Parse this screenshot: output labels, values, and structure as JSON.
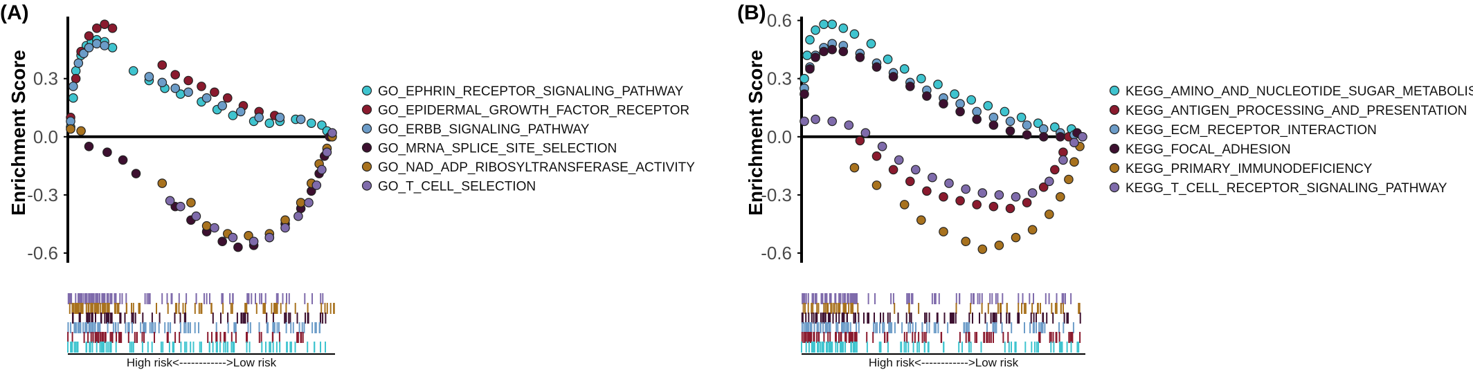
{
  "colors": {
    "cyan": "#3fc4cf",
    "maroon": "#8a1a2e",
    "steel": "#6c9cc8",
    "darkplum": "#3d1030",
    "bronze": "#a8721e",
    "lavender": "#7f6bab"
  },
  "chart_data": [
    {
      "type": "scatter",
      "panel": "(A)",
      "ylabel": "Enrichment Score",
      "ylim": [
        -0.65,
        0.62
      ],
      "xlim": [
        0,
        1
      ],
      "yticks": [
        {
          "value": 0.3,
          "label": "0.3"
        },
        {
          "value": 0.0,
          "label": "0.0"
        },
        {
          "value": -0.3,
          "label": "-0.3"
        },
        {
          "value": -0.6,
          "label": "-0.6"
        }
      ],
      "xcaption": "High risk<------------>Low risk",
      "legend_position": "right",
      "series": [
        {
          "name": "GO_EPHRIN_RECEPTOR_SIGNALING_PATHWAY",
          "color": "#3fc4cf",
          "points": [
            [
              0.0,
              0.05
            ],
            [
              0.01,
              0.2
            ],
            [
              0.02,
              0.34
            ],
            [
              0.04,
              0.42
            ],
            [
              0.06,
              0.47
            ],
            [
              0.08,
              0.49
            ],
            [
              0.1,
              0.5
            ],
            [
              0.13,
              0.49
            ],
            [
              0.16,
              0.46
            ],
            [
              0.24,
              0.34
            ],
            [
              0.3,
              0.29
            ],
            [
              0.36,
              0.25
            ],
            [
              0.42,
              0.22
            ],
            [
              0.5,
              0.18
            ],
            [
              0.56,
              0.14
            ],
            [
              0.62,
              0.11
            ],
            [
              0.7,
              0.08
            ],
            [
              0.76,
              0.07
            ],
            [
              0.8,
              0.08
            ],
            [
              0.86,
              0.09
            ],
            [
              0.92,
              0.07
            ],
            [
              0.96,
              0.06
            ],
            [
              0.98,
              0.03
            ]
          ]
        },
        {
          "name": "GO_EPIDERMAL_GROWTH_FACTOR_RECEPTOR",
          "color": "#8a1a2e",
          "points": [
            [
              0.0,
              0.1
            ],
            [
              0.02,
              0.3
            ],
            [
              0.04,
              0.44
            ],
            [
              0.07,
              0.52
            ],
            [
              0.1,
              0.56
            ],
            [
              0.13,
              0.58
            ],
            [
              0.16,
              0.56
            ],
            [
              0.35,
              0.37
            ],
            [
              0.4,
              0.32
            ],
            [
              0.45,
              0.29
            ],
            [
              0.5,
              0.26
            ],
            [
              0.55,
              0.23
            ],
            [
              0.6,
              0.2
            ],
            [
              0.66,
              0.16
            ],
            [
              0.72,
              0.13
            ],
            [
              0.78,
              0.11
            ]
          ]
        },
        {
          "name": "GO_ERBB_SIGNALING_PATHWAY",
          "color": "#6c9cc8",
          "points": [
            [
              0.0,
              0.08
            ],
            [
              0.01,
              0.26
            ],
            [
              0.03,
              0.38
            ],
            [
              0.05,
              0.43
            ],
            [
              0.07,
              0.46
            ],
            [
              0.1,
              0.48
            ],
            [
              0.13,
              0.47
            ],
            [
              0.3,
              0.31
            ],
            [
              0.35,
              0.28
            ],
            [
              0.4,
              0.25
            ],
            [
              0.45,
              0.23
            ],
            [
              0.52,
              0.2
            ],
            [
              0.58,
              0.16
            ],
            [
              0.65,
              0.13
            ],
            [
              0.72,
              0.1
            ],
            [
              0.8,
              0.1
            ],
            [
              0.88,
              0.09
            ]
          ]
        },
        {
          "name": "GO_MRNA_SPLICE_SITE_SELECTION",
          "color": "#3d1030",
          "points": [
            [
              0.07,
              -0.05
            ],
            [
              0.14,
              -0.08
            ],
            [
              0.2,
              -0.12
            ],
            [
              0.25,
              -0.19
            ],
            [
              0.4,
              -0.36
            ],
            [
              0.46,
              -0.43
            ],
            [
              0.52,
              -0.49
            ],
            [
              0.58,
              -0.54
            ],
            [
              0.64,
              -0.57
            ],
            [
              0.7,
              -0.56
            ],
            [
              0.76,
              -0.52
            ],
            [
              0.82,
              -0.45
            ],
            [
              0.88,
              -0.37
            ],
            [
              0.92,
              -0.28
            ],
            [
              0.95,
              -0.19
            ],
            [
              0.97,
              -0.1
            ],
            [
              0.99,
              0.0
            ]
          ]
        },
        {
          "name": "GO_NAD_ADP_RIBOSYLTRANSFERASE_ACTIVITY",
          "color": "#a8721e",
          "points": [
            [
              0.0,
              0.04
            ],
            [
              0.04,
              0.03
            ],
            [
              0.35,
              -0.24
            ],
            [
              0.46,
              -0.34
            ],
            [
              0.52,
              -0.46
            ],
            [
              0.6,
              -0.5
            ],
            [
              0.68,
              -0.51
            ],
            [
              0.76,
              -0.5
            ],
            [
              0.82,
              -0.43
            ],
            [
              0.88,
              -0.34
            ],
            [
              0.92,
              -0.24
            ],
            [
              0.95,
              -0.14
            ],
            [
              0.98,
              -0.06
            ],
            [
              1.0,
              0.0
            ]
          ]
        },
        {
          "name": "GO_T_CELL_SELECTION",
          "color": "#7f6bab",
          "points": [
            [
              0.38,
              -0.33
            ],
            [
              0.42,
              -0.36
            ],
            [
              0.48,
              -0.41
            ],
            [
              0.55,
              -0.47
            ],
            [
              0.62,
              -0.52
            ],
            [
              0.7,
              -0.54
            ],
            [
              0.76,
              -0.52
            ],
            [
              0.82,
              -0.47
            ],
            [
              0.87,
              -0.41
            ],
            [
              0.91,
              -0.34
            ],
            [
              0.94,
              -0.25
            ],
            [
              0.96,
              -0.17
            ],
            [
              0.98,
              -0.08
            ],
            [
              1.0,
              0.02
            ]
          ]
        }
      ]
    },
    {
      "type": "scatter",
      "panel": "(B)",
      "ylabel": "Enrichment Score",
      "ylim": [
        -0.65,
        0.62
      ],
      "xlim": [
        0,
        1
      ],
      "yticks": [
        {
          "value": 0.6,
          "label": "0.6"
        },
        {
          "value": 0.3,
          "label": "0.3"
        },
        {
          "value": 0.0,
          "label": "0.0"
        },
        {
          "value": -0.3,
          "label": "-0.3"
        },
        {
          "value": -0.6,
          "label": "-0.6"
        }
      ],
      "xcaption": "High risk<------------>Low risk",
      "legend_position": "right",
      "series": [
        {
          "name": "KEGG_AMINO_AND_NUCLEOTIDE_SUGAR_METABOLISM",
          "color": "#3fc4cf",
          "points": [
            [
              0.0,
              0.3
            ],
            [
              0.01,
              0.42
            ],
            [
              0.02,
              0.5
            ],
            [
              0.04,
              0.55
            ],
            [
              0.07,
              0.58
            ],
            [
              0.1,
              0.58
            ],
            [
              0.14,
              0.56
            ],
            [
              0.18,
              0.53
            ],
            [
              0.24,
              0.48
            ],
            [
              0.3,
              0.4
            ],
            [
              0.36,
              0.35
            ],
            [
              0.42,
              0.3
            ],
            [
              0.48,
              0.27
            ],
            [
              0.54,
              0.22
            ],
            [
              0.6,
              0.19
            ],
            [
              0.66,
              0.16
            ],
            [
              0.72,
              0.13
            ],
            [
              0.78,
              0.1
            ],
            [
              0.84,
              0.07
            ],
            [
              0.9,
              0.05
            ],
            [
              0.96,
              0.04
            ]
          ]
        },
        {
          "name": "KEGG_ANTIGEN_PROCESSING_AND_PRESENTATION",
          "color": "#8a1a2e",
          "points": [
            [
              0.2,
              -0.02
            ],
            [
              0.26,
              -0.1
            ],
            [
              0.32,
              -0.17
            ],
            [
              0.38,
              -0.23
            ],
            [
              0.44,
              -0.28
            ],
            [
              0.5,
              -0.31
            ],
            [
              0.56,
              -0.33
            ],
            [
              0.62,
              -0.35
            ],
            [
              0.68,
              -0.36
            ],
            [
              0.74,
              -0.37
            ],
            [
              0.8,
              -0.34
            ],
            [
              0.86,
              -0.26
            ],
            [
              0.9,
              -0.17
            ],
            [
              0.93,
              -0.08
            ],
            [
              0.95,
              0.0
            ]
          ]
        },
        {
          "name": "KEGG_ECM_RECEPTOR_INTERACTION",
          "color": "#6c9cc8",
          "points": [
            [
              0.0,
              0.25
            ],
            [
              0.02,
              0.36
            ],
            [
              0.04,
              0.42
            ],
            [
              0.07,
              0.46
            ],
            [
              0.1,
              0.48
            ],
            [
              0.14,
              0.47
            ],
            [
              0.2,
              0.43
            ],
            [
              0.26,
              0.38
            ],
            [
              0.32,
              0.33
            ],
            [
              0.38,
              0.28
            ],
            [
              0.44,
              0.24
            ],
            [
              0.5,
              0.2
            ],
            [
              0.56,
              0.17
            ],
            [
              0.62,
              0.13
            ],
            [
              0.68,
              0.1
            ],
            [
              0.74,
              0.08
            ],
            [
              0.8,
              0.06
            ],
            [
              0.86,
              0.04
            ],
            [
              0.92,
              0.02
            ],
            [
              0.97,
              0.01
            ]
          ]
        },
        {
          "name": "KEGG_FOCAL_ADHESION",
          "color": "#3d1030",
          "points": [
            [
              0.0,
              0.22
            ],
            [
              0.02,
              0.35
            ],
            [
              0.04,
              0.41
            ],
            [
              0.07,
              0.44
            ],
            [
              0.1,
              0.45
            ],
            [
              0.14,
              0.44
            ],
            [
              0.2,
              0.41
            ],
            [
              0.26,
              0.36
            ],
            [
              0.32,
              0.31
            ],
            [
              0.38,
              0.26
            ],
            [
              0.44,
              0.21
            ],
            [
              0.5,
              0.17
            ],
            [
              0.56,
              0.13
            ],
            [
              0.62,
              0.09
            ],
            [
              0.68,
              0.06
            ],
            [
              0.74,
              0.03
            ],
            [
              0.8,
              0.01
            ],
            [
              0.86,
              0.0
            ],
            [
              0.92,
              0.0
            ],
            [
              0.98,
              0.02
            ]
          ]
        },
        {
          "name": "KEGG_PRIMARY_IMMUNODEFICIENCY",
          "color": "#a8721e",
          "points": [
            [
              0.18,
              -0.16
            ],
            [
              0.26,
              -0.25
            ],
            [
              0.36,
              -0.35
            ],
            [
              0.42,
              -0.43
            ],
            [
              0.5,
              -0.49
            ],
            [
              0.58,
              -0.54
            ],
            [
              0.64,
              -0.58
            ],
            [
              0.7,
              -0.56
            ],
            [
              0.76,
              -0.52
            ],
            [
              0.82,
              -0.48
            ],
            [
              0.88,
              -0.4
            ],
            [
              0.92,
              -0.31
            ],
            [
              0.95,
              -0.22
            ],
            [
              0.97,
              -0.13
            ],
            [
              0.99,
              -0.05
            ]
          ]
        },
        {
          "name": "KEGG_T_CELL_RECEPTOR_SIGNALING_PATHWAY",
          "color": "#7f6bab",
          "points": [
            [
              0.0,
              0.08
            ],
            [
              0.04,
              0.09
            ],
            [
              0.1,
              0.08
            ],
            [
              0.16,
              0.06
            ],
            [
              0.22,
              0.02
            ],
            [
              0.28,
              -0.05
            ],
            [
              0.34,
              -0.12
            ],
            [
              0.4,
              -0.17
            ],
            [
              0.46,
              -0.21
            ],
            [
              0.52,
              -0.24
            ],
            [
              0.58,
              -0.27
            ],
            [
              0.64,
              -0.29
            ],
            [
              0.7,
              -0.3
            ],
            [
              0.76,
              -0.31
            ],
            [
              0.82,
              -0.29
            ],
            [
              0.88,
              -0.23
            ],
            [
              0.93,
              -0.12
            ],
            [
              0.97,
              -0.03
            ],
            [
              1.0,
              0.0
            ]
          ]
        }
      ]
    }
  ]
}
